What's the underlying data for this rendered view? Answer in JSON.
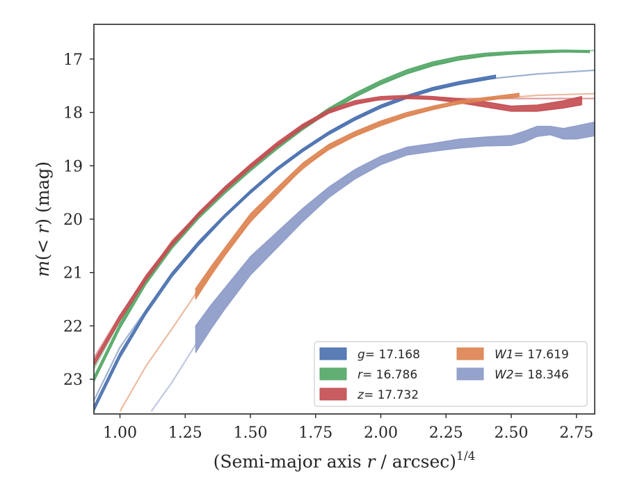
{
  "chart_data": {
    "type": "line",
    "title": "",
    "xlabel_prefix": "(Semi-major axis ",
    "xlabel_var": "r",
    "xlabel_suffix": " / arcsec)",
    "xlabel_sup": "1/4",
    "ylabel_var1": "m",
    "ylabel_mid": "(< ",
    "ylabel_var2": "r",
    "ylabel_suffix": ") (mag)",
    "xlim": [
      0.9,
      2.82
    ],
    "ylim": [
      23.65,
      16.35
    ],
    "y_inverted": true,
    "xticks": [
      "1.00",
      "1.25",
      "1.50",
      "1.75",
      "2.00",
      "2.25",
      "2.50",
      "2.75"
    ],
    "xtick_values": [
      1.0,
      1.25,
      1.5,
      1.75,
      2.0,
      2.25,
      2.5,
      2.75
    ],
    "yticks": [
      "17",
      "18",
      "19",
      "20",
      "21",
      "22",
      "23"
    ],
    "ytick_values": [
      17,
      18,
      19,
      20,
      21,
      22,
      23
    ],
    "grid": false,
    "legend_position": "lower-right",
    "series": [
      {
        "key": "g",
        "color": "#4c72b0",
        "legend_var": "g",
        "legend_value": "= 17.168",
        "band": [
          [
            0.9,
            23.6,
            23.5
          ],
          [
            1.0,
            22.6,
            22.5
          ],
          [
            1.1,
            21.78,
            21.7
          ],
          [
            1.2,
            21.08,
            21.0
          ],
          [
            1.3,
            20.5,
            20.42
          ],
          [
            1.4,
            19.98,
            19.92
          ],
          [
            1.5,
            19.52,
            19.46
          ],
          [
            1.6,
            19.1,
            19.04
          ],
          [
            1.7,
            18.74,
            18.68
          ],
          [
            1.8,
            18.42,
            18.36
          ],
          [
            1.9,
            18.15,
            18.09
          ],
          [
            2.0,
            17.92,
            17.86
          ],
          [
            2.1,
            17.74,
            17.68
          ],
          [
            2.2,
            17.59,
            17.53
          ],
          [
            2.3,
            17.48,
            17.42
          ],
          [
            2.44,
            17.36,
            17.3
          ]
        ],
        "model": [
          [
            0.9,
            23.4
          ],
          [
            1.0,
            22.4
          ],
          [
            1.2,
            21.0
          ],
          [
            1.4,
            19.93
          ],
          [
            1.6,
            19.05
          ],
          [
            1.8,
            18.37
          ],
          [
            2.0,
            17.88
          ],
          [
            2.2,
            17.56
          ],
          [
            2.4,
            17.38
          ],
          [
            2.6,
            17.28
          ],
          [
            2.82,
            17.21
          ]
        ]
      },
      {
        "key": "r",
        "color": "#55a868",
        "legend_var": "r",
        "legend_value": "= 16.786",
        "band": [
          [
            0.9,
            23.05,
            22.95
          ],
          [
            1.0,
            22.05,
            21.95
          ],
          [
            1.1,
            21.22,
            21.12
          ],
          [
            1.2,
            20.55,
            20.45
          ],
          [
            1.3,
            20.0,
            19.92
          ],
          [
            1.4,
            19.53,
            19.45
          ],
          [
            1.5,
            19.1,
            19.02
          ],
          [
            1.6,
            18.7,
            18.62
          ],
          [
            1.7,
            18.33,
            18.25
          ],
          [
            1.8,
            18.0,
            17.92
          ],
          [
            1.9,
            17.72,
            17.64
          ],
          [
            2.0,
            17.48,
            17.4
          ],
          [
            2.1,
            17.28,
            17.2
          ],
          [
            2.2,
            17.13,
            17.05
          ],
          [
            2.3,
            17.02,
            16.95
          ],
          [
            2.4,
            16.95,
            16.89
          ],
          [
            2.5,
            16.91,
            16.86
          ],
          [
            2.6,
            16.89,
            16.84
          ],
          [
            2.7,
            16.87,
            16.83
          ],
          [
            2.8,
            16.88,
            16.84
          ]
        ],
        "model": [
          [
            0.9,
            22.8
          ],
          [
            1.0,
            21.9
          ],
          [
            1.2,
            20.45
          ],
          [
            1.4,
            19.45
          ],
          [
            1.6,
            18.63
          ],
          [
            1.8,
            17.95
          ],
          [
            2.0,
            17.45
          ],
          [
            2.2,
            17.1
          ],
          [
            2.4,
            16.93
          ],
          [
            2.6,
            16.86
          ],
          [
            2.82,
            16.84
          ]
        ]
      },
      {
        "key": "z",
        "color": "#c44e52",
        "legend_var": "z",
        "legend_value": "= 17.732",
        "band": [
          [
            0.9,
            22.75,
            22.65
          ],
          [
            1.0,
            21.9,
            21.8
          ],
          [
            1.1,
            21.15,
            21.05
          ],
          [
            1.2,
            20.5,
            20.42
          ],
          [
            1.3,
            19.95,
            19.88
          ],
          [
            1.4,
            19.48,
            19.4
          ],
          [
            1.5,
            19.05,
            18.97
          ],
          [
            1.6,
            18.65,
            18.57
          ],
          [
            1.7,
            18.3,
            18.22
          ],
          [
            1.8,
            18.02,
            17.95
          ],
          [
            1.9,
            17.85,
            17.78
          ],
          [
            2.0,
            17.76,
            17.7
          ],
          [
            2.1,
            17.74,
            17.68
          ],
          [
            2.2,
            17.76,
            17.7
          ],
          [
            2.3,
            17.82,
            17.74
          ],
          [
            2.4,
            17.9,
            17.8
          ],
          [
            2.5,
            17.98,
            17.88
          ],
          [
            2.6,
            17.98,
            17.86
          ],
          [
            2.7,
            17.92,
            17.78
          ],
          [
            2.77,
            17.86,
            17.7
          ]
        ],
        "model": [
          [
            0.9,
            22.6
          ],
          [
            1.0,
            21.8
          ],
          [
            1.2,
            20.4
          ],
          [
            1.4,
            19.42
          ],
          [
            1.6,
            18.6
          ],
          [
            1.8,
            18.0
          ],
          [
            1.95,
            17.78
          ],
          [
            2.1,
            17.74
          ],
          [
            2.4,
            17.74
          ],
          [
            2.82,
            17.74
          ]
        ]
      },
      {
        "key": "W1",
        "color": "#dd8452",
        "legend_var": "W1",
        "legend_value": "= 17.619",
        "band": [
          [
            1.29,
            21.5,
            21.3
          ],
          [
            1.35,
            21.05,
            20.88
          ],
          [
            1.4,
            20.7,
            20.55
          ],
          [
            1.5,
            20.05,
            19.9
          ],
          [
            1.6,
            19.55,
            19.42
          ],
          [
            1.7,
            19.05,
            18.95
          ],
          [
            1.8,
            18.7,
            18.6
          ],
          [
            1.9,
            18.45,
            18.36
          ],
          [
            2.0,
            18.25,
            18.16
          ],
          [
            2.1,
            18.08,
            18.0
          ],
          [
            2.2,
            17.95,
            17.88
          ],
          [
            2.3,
            17.84,
            17.78
          ],
          [
            2.4,
            17.78,
            17.72
          ],
          [
            2.5,
            17.72,
            17.66
          ],
          [
            2.53,
            17.7,
            17.64
          ]
        ],
        "model": [
          [
            1.0,
            23.6
          ],
          [
            1.1,
            22.75
          ],
          [
            1.2,
            22.05
          ],
          [
            1.29,
            21.4
          ],
          [
            1.4,
            20.62
          ],
          [
            1.6,
            19.48
          ],
          [
            1.8,
            18.65
          ],
          [
            2.0,
            18.2
          ],
          [
            2.2,
            17.92
          ],
          [
            2.4,
            17.76
          ],
          [
            2.6,
            17.68
          ],
          [
            2.82,
            17.65
          ]
        ]
      },
      {
        "key": "W2",
        "color": "#8c9bc8",
        "legend_var": "W2",
        "legend_value": "= 18.346",
        "band": [
          [
            1.29,
            22.5,
            22.0
          ],
          [
            1.35,
            22.05,
            21.6
          ],
          [
            1.4,
            21.7,
            21.3
          ],
          [
            1.5,
            21.05,
            20.7
          ],
          [
            1.6,
            20.55,
            20.25
          ],
          [
            1.7,
            20.05,
            19.8
          ],
          [
            1.8,
            19.6,
            19.4
          ],
          [
            1.9,
            19.25,
            19.07
          ],
          [
            2.0,
            18.98,
            18.82
          ],
          [
            2.1,
            18.8,
            18.65
          ],
          [
            2.2,
            18.73,
            18.58
          ],
          [
            2.3,
            18.67,
            18.5
          ],
          [
            2.4,
            18.63,
            18.46
          ],
          [
            2.5,
            18.62,
            18.43
          ],
          [
            2.55,
            18.56,
            18.35
          ],
          [
            2.6,
            18.45,
            18.26
          ],
          [
            2.65,
            18.42,
            18.26
          ],
          [
            2.7,
            18.5,
            18.3
          ],
          [
            2.75,
            18.5,
            18.25
          ],
          [
            2.82,
            18.44,
            18.18
          ]
        ],
        "model": [
          [
            1.12,
            23.6
          ],
          [
            1.2,
            23.05
          ],
          [
            1.29,
            22.35
          ]
        ]
      }
    ]
  }
}
